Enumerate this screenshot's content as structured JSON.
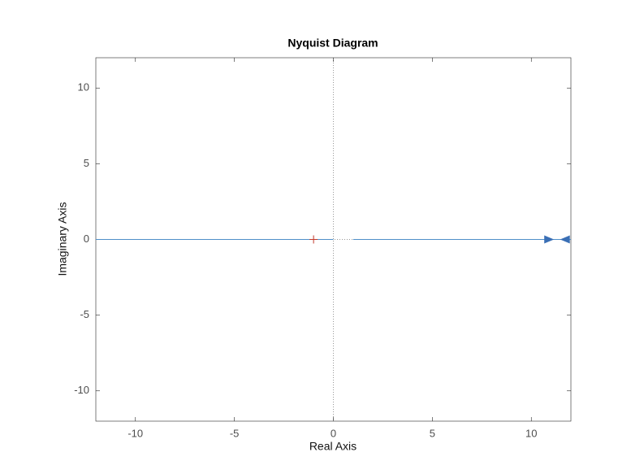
{
  "chart_data": {
    "type": "nyquist",
    "title": "Nyquist Diagram",
    "x_label": "Real Axis",
    "y_label": "Imaginary Axis",
    "xlim": [
      -12,
      12
    ],
    "ylim": [
      -12,
      12
    ],
    "xticks": [
      -10,
      -5,
      0,
      5,
      10
    ],
    "yticks": [
      -10,
      -5,
      0,
      5,
      10
    ],
    "zero_lines": true,
    "series": [
      {
        "color": "#4f8fc9",
        "x": [
          -12,
          0,
          0.5,
          1,
          12
        ],
        "values": [
          0,
          0,
          null,
          0,
          0
        ]
      }
    ],
    "arrows": [
      {
        "x": 10.9,
        "y": 0,
        "direction": "right"
      },
      {
        "x": 11.7,
        "y": 0,
        "direction": "left"
      }
    ],
    "arrow_color": "#3a6fb5",
    "critical_point": {
      "x": -1,
      "y": 0,
      "color": "#c0392b"
    }
  }
}
